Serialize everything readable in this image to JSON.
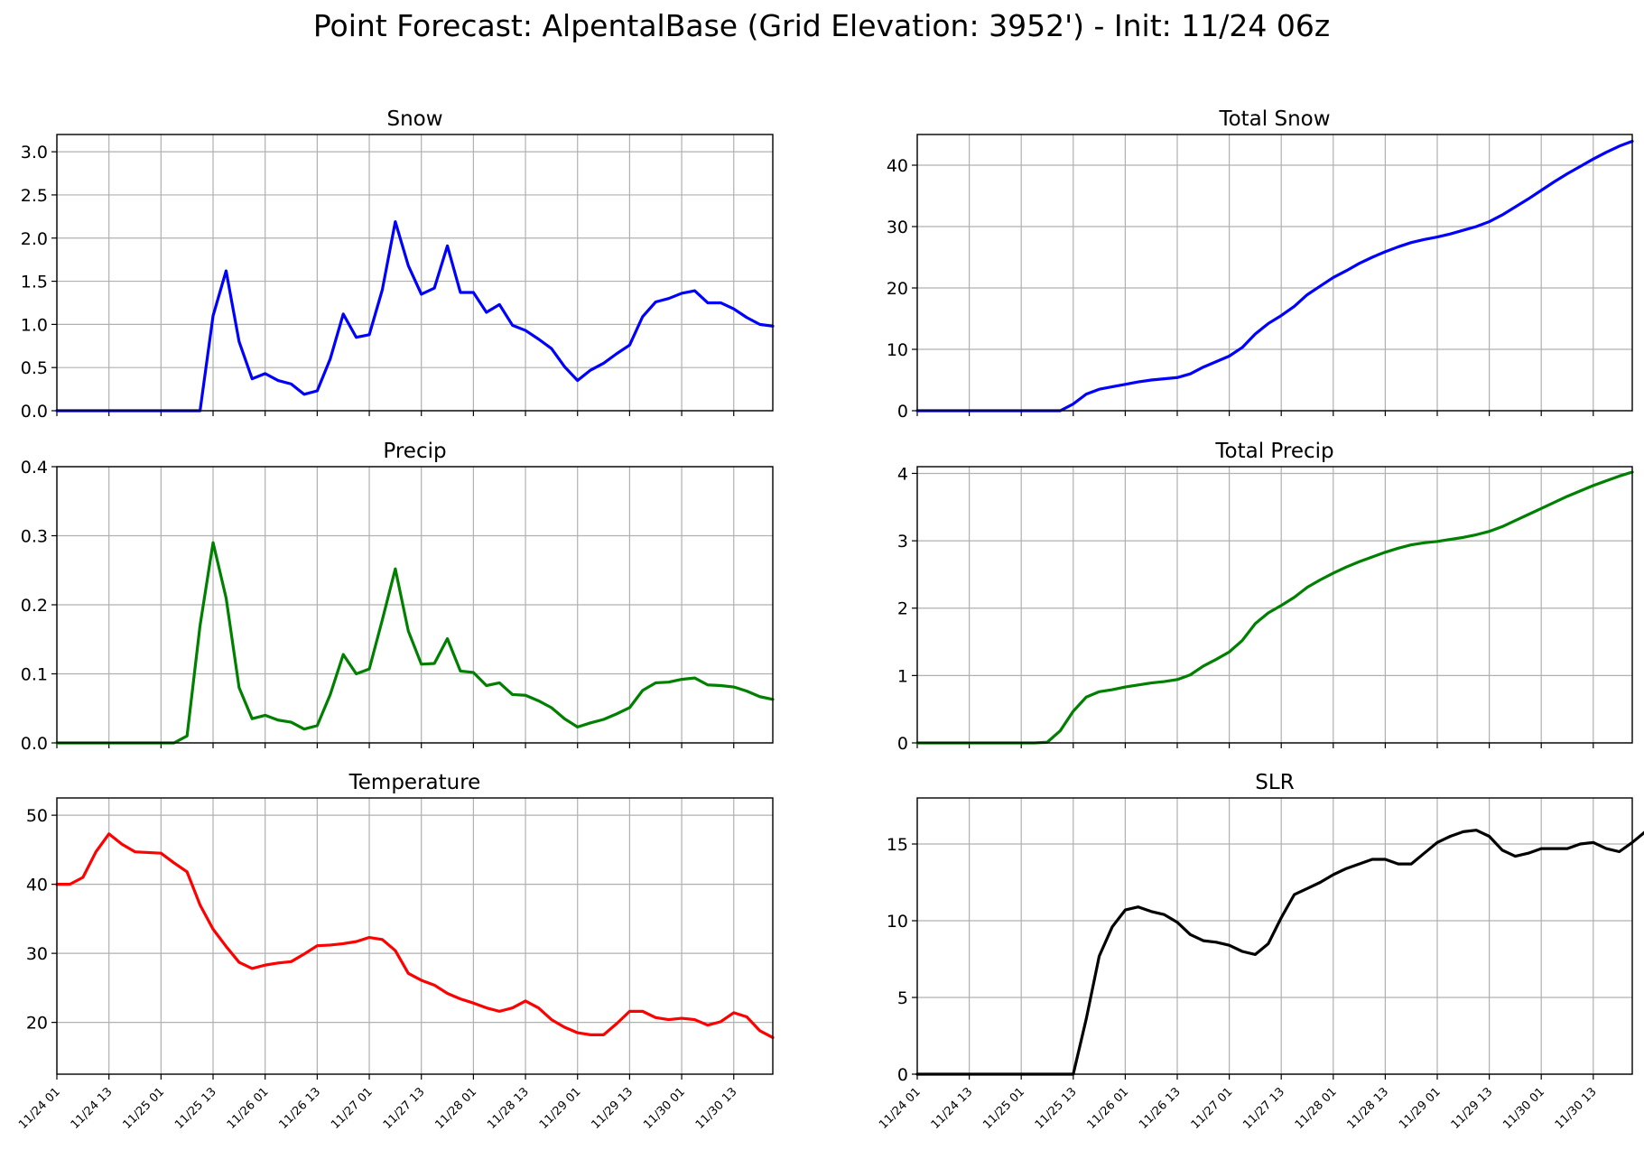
{
  "figure": {
    "title": "Point Forecast: AlpentalBase (Grid Elevation: 3952') - Init: 11/24 06z"
  },
  "chart_data": [
    {
      "type": "line",
      "title": "Snow",
      "xlabel": "",
      "ylabel": "",
      "x_ticklabels": [
        "11/24 01",
        "11/24 13",
        "11/25 01",
        "11/25 13",
        "11/26 01",
        "11/26 13",
        "11/27 01",
        "11/27 13",
        "11/28 01",
        "11/28 13",
        "11/29 01",
        "11/29 13",
        "11/30 01",
        "11/30 13"
      ],
      "x_start_hour": 0,
      "x_step_hours": 3,
      "xlim_hours": [
        0,
        165
      ],
      "ylim": [
        0,
        3.2
      ],
      "yticks": [
        0.0,
        0.5,
        1.0,
        1.5,
        2.0,
        2.5,
        3.0
      ],
      "ytick_decimals": 1,
      "grid": true,
      "color": "#0000ff",
      "series": [
        {
          "values": [
            0,
            0,
            0,
            0,
            0,
            0,
            0,
            0,
            0,
            0,
            0,
            0,
            1.1,
            1.62,
            0.8,
            0.37,
            0.43,
            0.35,
            0.31,
            0.19,
            0.23,
            0.6,
            1.12,
            0.85,
            0.88,
            1.4,
            2.19,
            1.68,
            1.35,
            1.42,
            1.91,
            1.37,
            1.37,
            1.14,
            1.23,
            0.99,
            0.93,
            0.83,
            0.72,
            0.51,
            0.35,
            0.47,
            0.55,
            0.66,
            0.76,
            1.09,
            1.26,
            1.3,
            1.36,
            1.39,
            1.25,
            1.25,
            1.18,
            1.08,
            1.0,
            0.98
          ]
        }
      ]
    },
    {
      "type": "line",
      "title": "Total Snow",
      "xlabel": "",
      "ylabel": "",
      "x_ticklabels": [
        "11/24 01",
        "11/24 13",
        "11/25 01",
        "11/25 13",
        "11/26 01",
        "11/26 13",
        "11/27 01",
        "11/27 13",
        "11/28 01",
        "11/28 13",
        "11/29 01",
        "11/29 13",
        "11/30 01",
        "11/30 13"
      ],
      "x_start_hour": 0,
      "x_step_hours": 3,
      "xlim_hours": [
        0,
        165
      ],
      "ylim": [
        0,
        45
      ],
      "yticks": [
        0,
        10,
        20,
        30,
        40
      ],
      "ytick_decimals": 0,
      "grid": true,
      "color": "#0000ff",
      "series": [
        {
          "values": [
            0,
            0,
            0,
            0,
            0,
            0,
            0,
            0,
            0,
            0,
            0,
            0,
            1.1,
            2.7,
            3.5,
            3.9,
            4.3,
            4.7,
            5.0,
            5.2,
            5.4,
            6.0,
            7.1,
            8.0,
            8.9,
            10.3,
            12.5,
            14.2,
            15.5,
            17.0,
            18.9,
            20.3,
            21.7,
            22.8,
            24.0,
            25.0,
            25.9,
            26.7,
            27.4,
            27.9,
            28.3,
            28.8,
            29.4,
            30.0,
            30.8,
            31.9,
            33.2,
            34.5,
            35.9,
            37.3,
            38.6,
            39.8,
            41.0,
            42.1,
            43.1,
            43.9
          ]
        }
      ]
    },
    {
      "type": "line",
      "title": "Precip",
      "xlabel": "",
      "ylabel": "",
      "x_ticklabels": [
        "11/24 01",
        "11/24 13",
        "11/25 01",
        "11/25 13",
        "11/26 01",
        "11/26 13",
        "11/27 01",
        "11/27 13",
        "11/28 01",
        "11/28 13",
        "11/29 01",
        "11/29 13",
        "11/30 01",
        "11/30 13"
      ],
      "x_start_hour": 0,
      "x_step_hours": 3,
      "xlim_hours": [
        0,
        165
      ],
      "ylim": [
        0,
        0.4
      ],
      "yticks": [
        0.0,
        0.1,
        0.2,
        0.3,
        0.4
      ],
      "ytick_decimals": 1,
      "grid": true,
      "color": "#008000",
      "series": [
        {
          "values": [
            0,
            0,
            0,
            0,
            0,
            0,
            0,
            0,
            0,
            0,
            0.01,
            0.17,
            0.29,
            0.21,
            0.08,
            0.035,
            0.04,
            0.033,
            0.03,
            0.02,
            0.025,
            0.07,
            0.128,
            0.1,
            0.107,
            0.178,
            0.252,
            0.162,
            0.114,
            0.115,
            0.151,
            0.104,
            0.102,
            0.083,
            0.087,
            0.07,
            0.069,
            0.061,
            0.051,
            0.035,
            0.023,
            0.029,
            0.034,
            0.042,
            0.051,
            0.076,
            0.087,
            0.088,
            0.092,
            0.094,
            0.084,
            0.083,
            0.081,
            0.075,
            0.067,
            0.063
          ]
        }
      ]
    },
    {
      "type": "line",
      "title": "Total Precip",
      "xlabel": "",
      "ylabel": "",
      "x_ticklabels": [
        "11/24 01",
        "11/24 13",
        "11/25 01",
        "11/25 13",
        "11/26 01",
        "11/26 13",
        "11/27 01",
        "11/27 13",
        "11/28 01",
        "11/28 13",
        "11/29 01",
        "11/29 13",
        "11/30 01",
        "11/30 13"
      ],
      "x_start_hour": 0,
      "x_step_hours": 3,
      "xlim_hours": [
        0,
        165
      ],
      "ylim": [
        0,
        4.1
      ],
      "yticks": [
        0,
        1,
        2,
        3,
        4
      ],
      "ytick_decimals": 0,
      "grid": true,
      "color": "#008000",
      "series": [
        {
          "values": [
            0,
            0,
            0,
            0,
            0,
            0,
            0,
            0,
            0,
            0,
            0.01,
            0.18,
            0.47,
            0.68,
            0.76,
            0.79,
            0.83,
            0.86,
            0.89,
            0.91,
            0.94,
            1.01,
            1.14,
            1.24,
            1.35,
            1.52,
            1.77,
            1.93,
            2.04,
            2.16,
            2.31,
            2.42,
            2.52,
            2.61,
            2.69,
            2.76,
            2.83,
            2.89,
            2.94,
            2.97,
            2.99,
            3.02,
            3.05,
            3.09,
            3.14,
            3.21,
            3.3,
            3.39,
            3.48,
            3.57,
            3.66,
            3.74,
            3.82,
            3.89,
            3.96,
            4.02
          ]
        }
      ]
    },
    {
      "type": "line",
      "title": "Temperature",
      "xlabel": "",
      "ylabel": "",
      "x_ticklabels": [
        "11/24 01",
        "11/24 13",
        "11/25 01",
        "11/25 13",
        "11/26 01",
        "11/26 13",
        "11/27 01",
        "11/27 13",
        "11/28 01",
        "11/28 13",
        "11/29 01",
        "11/29 13",
        "11/30 01",
        "11/30 13"
      ],
      "x_start_hour": 0,
      "x_step_hours": 3,
      "xlim_hours": [
        0,
        165
      ],
      "ylim": [
        12.5,
        52.5
      ],
      "yticks": [
        20,
        30,
        40,
        50
      ],
      "ytick_decimals": 0,
      "grid": true,
      "color": "#ff0000",
      "series": [
        {
          "values": [
            40.0,
            40.0,
            41.0,
            44.7,
            47.3,
            45.8,
            44.7,
            44.6,
            44.5,
            43.1,
            41.8,
            37.0,
            33.5,
            31.0,
            28.7,
            27.8,
            28.3,
            28.6,
            28.8,
            29.9,
            31.1,
            31.2,
            31.4,
            31.7,
            32.3,
            32.0,
            30.4,
            27.1,
            26.1,
            25.4,
            24.2,
            23.4,
            22.8,
            22.1,
            21.6,
            22.1,
            23.1,
            22.1,
            20.4,
            19.3,
            18.5,
            18.2,
            18.2,
            19.8,
            21.6,
            21.6,
            20.7,
            20.4,
            20.6,
            20.4,
            19.6,
            20.1,
            21.4,
            20.8,
            18.8,
            17.8
          ]
        }
      ]
    },
    {
      "type": "line",
      "title": "SLR",
      "xlabel": "",
      "ylabel": "",
      "x_ticklabels": [
        "11/24 01",
        "11/24 13",
        "11/25 01",
        "11/25 13",
        "11/26 01",
        "11/26 13",
        "11/27 01",
        "11/27 13",
        "11/28 01",
        "11/28 13",
        "11/29 01",
        "11/29 13",
        "11/30 01",
        "11/30 13"
      ],
      "x_start_hour": 0,
      "x_step_hours": 3,
      "xlim_hours": [
        0,
        165
      ],
      "ylim": [
        0,
        18
      ],
      "yticks": [
        0,
        5,
        10,
        15
      ],
      "ytick_decimals": 0,
      "grid": true,
      "color": "#000000",
      "series": [
        {
          "values": [
            0,
            0,
            0,
            0,
            0,
            0,
            0,
            0,
            0,
            0,
            0,
            0,
            0,
            3.6,
            7.7,
            9.6,
            10.7,
            10.9,
            10.6,
            10.4,
            9.9,
            9.1,
            8.7,
            8.6,
            8.4,
            8.0,
            7.8,
            8.5,
            10.2,
            11.7,
            12.1,
            12.5,
            13.0,
            13.4,
            13.7,
            14.0,
            14.0,
            13.7,
            13.7,
            14.4,
            15.1,
            15.5,
            15.8,
            15.9,
            15.5,
            14.6,
            14.2,
            14.4,
            14.7,
            14.7,
            14.7,
            15.0,
            15.1,
            14.7,
            14.5,
            15.1,
            15.8
          ]
        }
      ]
    }
  ]
}
